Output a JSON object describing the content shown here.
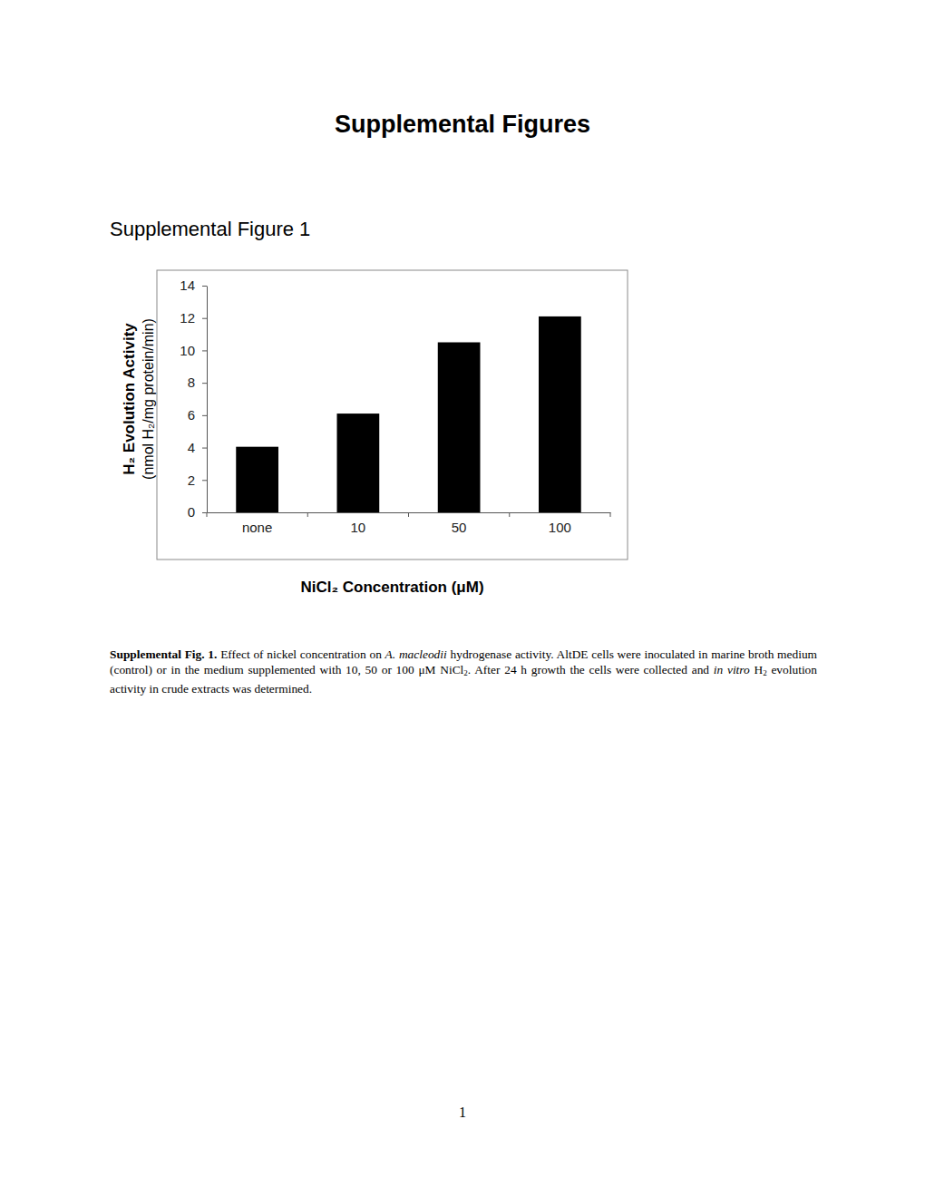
{
  "document": {
    "heading": "Supplemental Figures",
    "figure_heading": "Supplemental Figure 1",
    "caption": [
      {
        "text": "Supplemental Fig. 1.",
        "style": "bold"
      },
      {
        "text": " Effect of nickel concentration on ",
        "style": "normal"
      },
      {
        "text": "A. macleodii",
        "style": "italic"
      },
      {
        "text": " hydrogenase activity. AltDE cells were inoculated in marine broth medium (control) or in the medium supplemented with 10, 50 or 100 μM NiCl",
        "style": "normal"
      },
      {
        "text": "2",
        "style": "sub"
      },
      {
        "text": ". After 24 h growth the cells were collected and ",
        "style": "normal"
      },
      {
        "text": "in vitro",
        "style": "italic"
      },
      {
        "text": " H",
        "style": "normal"
      },
      {
        "text": "2",
        "style": "sub"
      },
      {
        "text": " evolution activity in crude extracts was determined.",
        "style": "normal"
      }
    ],
    "page_number": "1"
  },
  "chart_data": {
    "type": "bar",
    "categories": [
      "none",
      "10",
      "50",
      "100"
    ],
    "values": [
      4.05,
      6.1,
      10.5,
      12.1
    ],
    "color": "#000000",
    "ylim": [
      0,
      14
    ],
    "yticks": [
      0,
      2,
      4,
      6,
      8,
      10,
      12,
      14
    ],
    "grid": false,
    "x_label": "NiCl₂ Concentration (μM)",
    "y_label": [
      "H₂ Evolution Activity",
      "(nmol H₂/mg protein/min)"
    ]
  }
}
